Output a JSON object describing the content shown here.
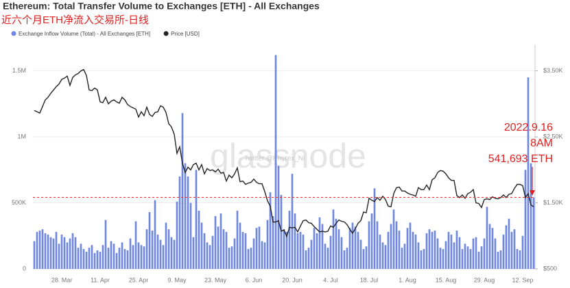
{
  "chart_data": {
    "type": "bar",
    "title": "Ethereum: Total Transfer Volume to Exchanges [ETH] - All Exchanges",
    "subtitle": "近六个月ETH净流入交易所-日线",
    "watermark": "glassnode",
    "watermark_small": "Twitter @Phyrex_Ni",
    "annotations": [
      "2022.9.16",
      "8AM",
      "541,693 ETH"
    ],
    "categories": [
      "18. Mar",
      "19. Mar",
      "20. Mar",
      "21. Mar",
      "22. Mar",
      "23. Mar",
      "24. Mar",
      "25. Mar",
      "26. Mar",
      "27. Mar",
      "28. Mar",
      "29. Mar",
      "30. Mar",
      "31. Mar",
      "1. Apr",
      "2. Apr",
      "3. Apr",
      "4. Apr",
      "5. Apr",
      "6. Apr",
      "7. Apr",
      "8. Apr",
      "9. Apr",
      "10. Apr",
      "11. Apr",
      "12. Apr",
      "13. Apr",
      "14. Apr",
      "15. Apr",
      "16. Apr",
      "17. Apr",
      "18. Apr",
      "19. Apr",
      "20. Apr",
      "21. Apr",
      "22. Apr",
      "23. Apr",
      "24. Apr",
      "25. Apr",
      "26. Apr",
      "27. Apr",
      "28. Apr",
      "29. Apr",
      "30. Apr",
      "1. May",
      "2. May",
      "3. May",
      "4. May",
      "5. May",
      "6. May",
      "7. May",
      "8. May",
      "9. May",
      "10. May",
      "11. May",
      "12. May",
      "13. May",
      "14. May",
      "15. May",
      "16. May",
      "17. May",
      "18. May",
      "19. May",
      "20. May",
      "21. May",
      "22. May",
      "23. May",
      "24. May",
      "25. May",
      "26. May",
      "27. May",
      "28. May",
      "29. May",
      "30. May",
      "31. May",
      "1. Jun",
      "2. Jun",
      "3. Jun",
      "4. Jun",
      "5. Jun",
      "6. Jun",
      "7. Jun",
      "8. Jun",
      "9. Jun",
      "10. Jun",
      "11. Jun",
      "12. Jun",
      "13. Jun",
      "14. Jun",
      "15. Jun",
      "16. Jun",
      "17. Jun",
      "18. Jun",
      "19. Jun",
      "20. Jun",
      "21. Jun",
      "22. Jun",
      "23. Jun",
      "24. Jun",
      "25. Jun",
      "26. Jun",
      "27. Jun",
      "28. Jun",
      "29. Jun",
      "30. Jun",
      "1. Jul",
      "2. Jul",
      "3. Jul",
      "4. Jul",
      "5. Jul",
      "6. Jul",
      "7. Jul",
      "8. Jul",
      "9. Jul",
      "10. Jul",
      "11. Jul",
      "12. Jul",
      "13. Jul",
      "14. Jul",
      "15. Jul",
      "16. Jul",
      "17. Jul",
      "18. Jul",
      "19. Jul",
      "20. Jul",
      "21. Jul",
      "22. Jul",
      "23. Jul",
      "24. Jul",
      "25. Jul",
      "26. Jul",
      "27. Jul",
      "28. Jul",
      "29. Jul",
      "30. Jul",
      "31. Jul",
      "1. Aug",
      "2. Aug",
      "3. Aug",
      "4. Aug",
      "5. Aug",
      "6. Aug",
      "7. Aug",
      "8. Aug",
      "9. Aug",
      "10. Aug",
      "11. Aug",
      "12. Aug",
      "13. Aug",
      "14. Aug",
      "15. Aug",
      "16. Aug",
      "17. Aug",
      "18. Aug",
      "19. Aug",
      "20. Aug",
      "21. Aug",
      "22. Aug",
      "23. Aug",
      "24. Aug",
      "25. Aug",
      "26. Aug",
      "27. Aug",
      "28. Aug",
      "29. Aug",
      "30. Aug",
      "31. Aug",
      "1. Sep",
      "2. Sep",
      "3. Sep",
      "4. Sep",
      "5. Sep",
      "6. Sep",
      "7. Sep",
      "8. Sep",
      "9. Sep",
      "10. Sep",
      "11. Sep",
      "12. Sep",
      "13. Sep",
      "14. Sep",
      "15. Sep",
      "16. Sep"
    ],
    "xticks": [
      "28. Mar",
      "11. Apr",
      "25. Apr",
      "9. May",
      "23. May",
      "6. Jun",
      "20. Jun",
      "4. Jul",
      "18. Jul",
      "1. Aug",
      "15. Aug",
      "29. Aug",
      "12. Sep"
    ],
    "series": [
      {
        "name": "Exchange Inflow Volume (Total) - All Exchanges [ETH]",
        "type": "bar",
        "color": "#6d86e8",
        "values": [
          210000,
          280000,
          290000,
          300000,
          270000,
          260000,
          240000,
          230000,
          280000,
          190000,
          260000,
          240000,
          200000,
          230000,
          270000,
          240000,
          160000,
          190000,
          150000,
          130000,
          160000,
          180000,
          120000,
          140000,
          130000,
          180000,
          370000,
          160000,
          210000,
          190000,
          120000,
          160000,
          200000,
          150000,
          140000,
          230000,
          180000,
          360000,
          200000,
          180000,
          170000,
          300000,
          430000,
          290000,
          520000,
          260000,
          220000,
          180000,
          350000,
          300000,
          240000,
          220000,
          510000,
          700000,
          1180000,
          800000,
          700000,
          500000,
          240000,
          750000,
          440000,
          350000,
          270000,
          200000,
          180000,
          250000,
          400000,
          320000,
          420000,
          300000,
          280000,
          160000,
          170000,
          230000,
          440000,
          350000,
          280000,
          270000,
          150000,
          160000,
          230000,
          310000,
          320000,
          210000,
          200000,
          370000,
          580000,
          400000,
          1620000,
          780000,
          560000,
          300000,
          280000,
          440000,
          720000,
          420000,
          270000,
          280000,
          260000,
          140000,
          160000,
          220000,
          310000,
          270000,
          390000,
          340000,
          190000,
          160000,
          250000,
          450000,
          380000,
          300000,
          240000,
          140000,
          160000,
          310000,
          350000,
          320000,
          280000,
          220000,
          150000,
          170000,
          360000,
          420000,
          610000,
          360000,
          260000,
          200000,
          180000,
          280000,
          340000,
          450000,
          360000,
          290000,
          160000,
          190000,
          310000,
          350000,
          280000,
          260000,
          200000,
          140000,
          150000,
          270000,
          300000,
          280000,
          290000,
          230000,
          160000,
          150000,
          210000,
          280000,
          260000,
          200000,
          290000,
          240000,
          150000,
          190000,
          170000,
          150000,
          230000,
          240000,
          130000,
          170000,
          230000,
          470000,
          340000,
          310000,
          230000,
          130000,
          140000,
          260000,
          330000,
          380000,
          280000,
          300000,
          150000,
          140000,
          250000,
          750000,
          1450000,
          800000,
          541693
        ]
      },
      {
        "name": "Price [USD]",
        "type": "line",
        "axis": "y2",
        "color": "#222222",
        "values": [
          2900,
          2880,
          2860,
          2960,
          3060,
          3100,
          3160,
          3210,
          3260,
          3300,
          3370,
          3390,
          3420,
          3280,
          3400,
          3440,
          3460,
          3500,
          3520,
          3430,
          3210,
          3200,
          3240,
          3210,
          3030,
          3020,
          3100,
          3000,
          3040,
          3060,
          3030,
          3010,
          3100,
          3060,
          2990,
          2960,
          2940,
          2920,
          2800,
          2880,
          2820,
          2950,
          2840,
          2810,
          2870,
          2880,
          2970,
          2950,
          2870,
          2700,
          2650,
          2540,
          2250,
          2350,
          2100,
          1960,
          2040,
          2000,
          2080,
          2100,
          2000,
          2080,
          1940,
          2020,
          1990,
          2000,
          1970,
          2010,
          1950,
          1960,
          1830,
          1920,
          1880,
          1940,
          2030,
          1820,
          1830,
          1780,
          1800,
          1810,
          1860,
          1810,
          1790,
          1790,
          1670,
          1530,
          1450,
          1210,
          1210,
          1230,
          1070,
          1090,
          990,
          1130,
          1120,
          1130,
          1060,
          1150,
          1230,
          1240,
          1200,
          1190,
          1140,
          1100,
          1060,
          1070,
          1060,
          1070,
          1150,
          1130,
          1190,
          1240,
          1220,
          1210,
          1170,
          1100,
          1040,
          1110,
          1190,
          1230,
          1360,
          1350,
          1570,
          1540,
          1520,
          1580,
          1540,
          1600,
          1550,
          1450,
          1440,
          1640,
          1730,
          1740,
          1680,
          1680,
          1650,
          1630,
          1620,
          1600,
          1730,
          1700,
          1700,
          1770,
          1700,
          1850,
          1880,
          1960,
          1990,
          1980,
          1940,
          1880,
          1840,
          1840,
          1610,
          1580,
          1620,
          1570,
          1640,
          1660,
          1700,
          1500,
          1490,
          1430,
          1550,
          1560,
          1550,
          1590,
          1570,
          1560,
          1580,
          1620,
          1580,
          1630,
          1640,
          1720,
          1780,
          1780,
          1760,
          1580,
          1640,
          1470,
          1440
        ]
      }
    ],
    "ylim": [
      0,
      1700000
    ],
    "yticks": [
      0,
      {
        "value": 500000,
        "label": "500K"
      },
      {
        "value": 1000000,
        "label": "1M"
      },
      {
        "value": 1500000,
        "label": "1.5M"
      }
    ],
    "y2lim": [
      500,
      3900
    ],
    "y2ticks": [
      {
        "value": 500,
        "label": "$500"
      },
      {
        "value": 1500,
        "label": "$1.50K"
      },
      {
        "value": 2500,
        "label": "$2.50K"
      },
      {
        "value": 3500,
        "label": "$3.50K"
      }
    ],
    "grid": true
  }
}
